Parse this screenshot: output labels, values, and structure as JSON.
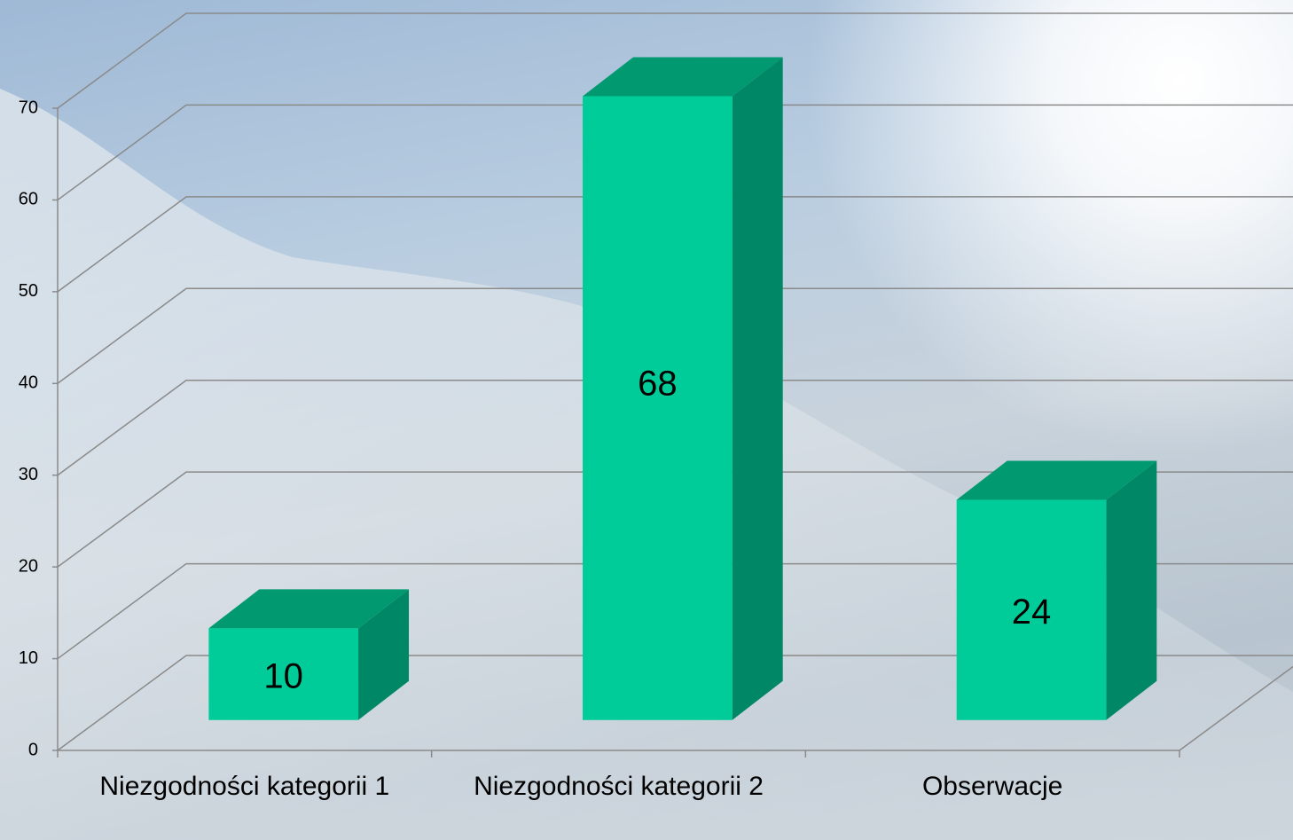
{
  "chart_data": {
    "type": "bar3d",
    "categories": [
      "Niezgodności kategorii 1",
      "Niezgodności kategorii 2",
      "Obserwacje"
    ],
    "values": [
      10,
      68,
      24
    ],
    "color": "#00cc99",
    "ylim": [
      0,
      70
    ],
    "yticks": [
      0,
      10,
      20,
      30,
      40,
      50,
      60,
      70
    ],
    "grid": true
  }
}
